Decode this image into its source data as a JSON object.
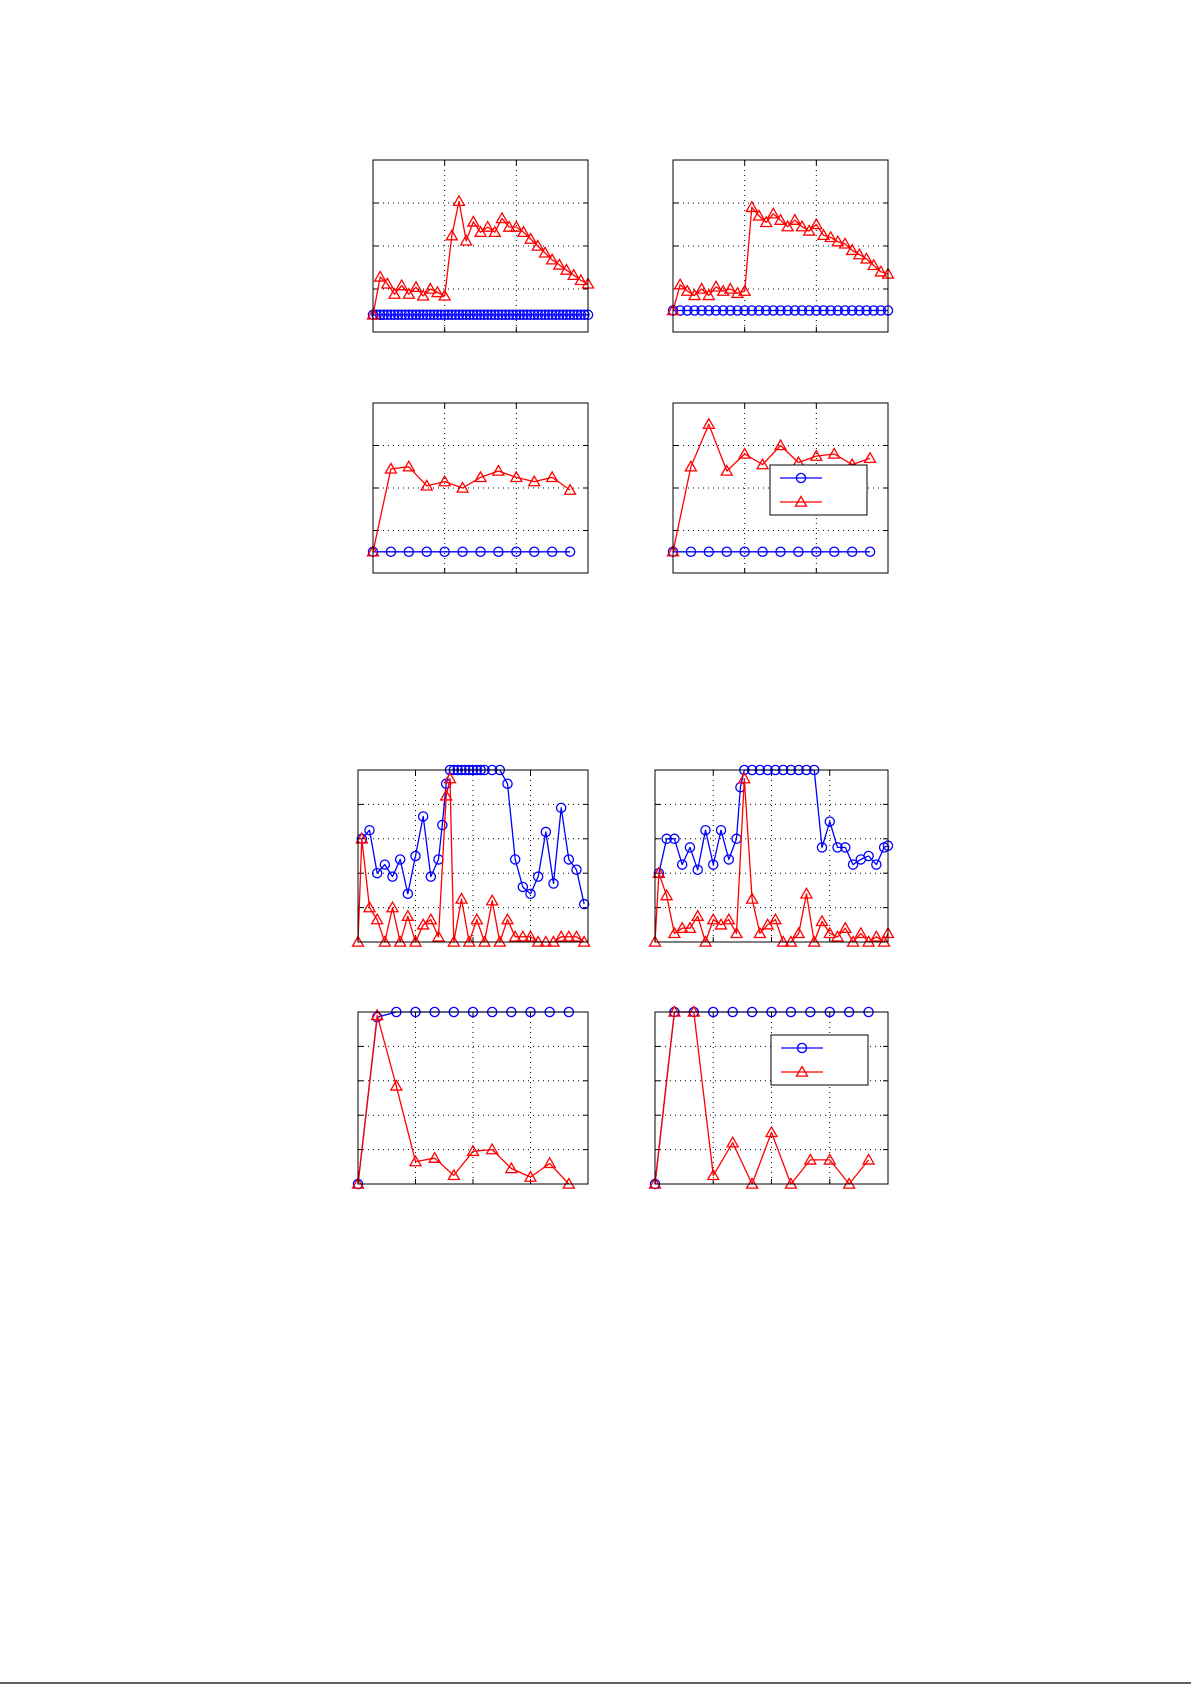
{
  "colors": {
    "series_circle": "#0000ff",
    "series_triangle": "#ff0000"
  },
  "chart_data": [
    {
      "id": "top-left",
      "type": "line",
      "grid": true,
      "xlim": [
        0,
        60
      ],
      "ylim": [
        -0.5,
        4.5
      ],
      "series": [
        {
          "marker": "circle",
          "color": "#0000ff",
          "x": [
            0,
            1,
            2,
            3,
            4,
            5,
            6,
            7,
            8,
            9,
            10,
            11,
            12,
            13,
            14,
            15,
            16,
            17,
            18,
            19,
            20,
            21,
            22,
            23,
            24,
            25,
            26,
            27,
            28,
            29,
            30,
            31,
            32,
            33,
            34,
            35,
            36,
            37,
            38,
            39,
            40,
            41,
            42,
            43,
            44,
            45,
            46,
            47,
            48,
            49,
            50,
            51,
            52,
            53,
            54,
            55,
            56,
            57,
            58,
            59,
            60
          ],
          "y": [
            0,
            0,
            0,
            0,
            0,
            0,
            0,
            0,
            0,
            0,
            0,
            0,
            0,
            0,
            0,
            0,
            0,
            0,
            0,
            0,
            0,
            0,
            0,
            0,
            0,
            0,
            0,
            0,
            0,
            0,
            0,
            0,
            0,
            0,
            0,
            0,
            0,
            0,
            0,
            0,
            0,
            0,
            0,
            0,
            0,
            0,
            0,
            0,
            0,
            0,
            0,
            0,
            0,
            0,
            0,
            0,
            0,
            0,
            0,
            0,
            0
          ]
        },
        {
          "marker": "triangle",
          "color": "#ff0000",
          "x": [
            0,
            2,
            4,
            6,
            8,
            10,
            12,
            14,
            16,
            18,
            20,
            22,
            24,
            26,
            28,
            30,
            32,
            34,
            36,
            38,
            40,
            42,
            44,
            46,
            48,
            50,
            52,
            54,
            56,
            58,
            60
          ],
          "y": [
            0,
            1.1,
            0.9,
            0.6,
            0.85,
            0.6,
            0.8,
            0.55,
            0.75,
            0.65,
            0.55,
            2.3,
            3.3,
            2.15,
            2.7,
            2.4,
            2.55,
            2.4,
            2.8,
            2.55,
            2.55,
            2.4,
            2.2,
            2.0,
            1.8,
            1.6,
            1.45,
            1.3,
            1.15,
            1.0,
            0.9
          ]
        }
      ]
    },
    {
      "id": "top-right",
      "type": "line",
      "grid": true,
      "xlim": [
        0,
        60
      ],
      "ylim": [
        -0.5,
        3.5
      ],
      "series": [
        {
          "marker": "circle",
          "color": "#0000ff",
          "x": [
            0,
            2,
            4,
            6,
            8,
            10,
            12,
            14,
            16,
            18,
            20,
            22,
            24,
            26,
            28,
            30,
            32,
            34,
            36,
            38,
            40,
            42,
            44,
            46,
            48,
            50,
            52,
            54,
            56,
            58,
            60
          ],
          "y": [
            0,
            0,
            0,
            0,
            0,
            0,
            0,
            0,
            0,
            0,
            0,
            0,
            0,
            0,
            0,
            0,
            0,
            0,
            0,
            0,
            0,
            0,
            0,
            0,
            0,
            0,
            0,
            0,
            0,
            0,
            0
          ]
        },
        {
          "marker": "triangle",
          "color": "#ff0000",
          "x": [
            0,
            2,
            4,
            6,
            8,
            10,
            12,
            14,
            16,
            18,
            20,
            22,
            24,
            26,
            28,
            30,
            32,
            34,
            36,
            38,
            40,
            42,
            44,
            46,
            48,
            50,
            52,
            54,
            56,
            58,
            60
          ],
          "y": [
            0,
            0.6,
            0.45,
            0.35,
            0.5,
            0.35,
            0.55,
            0.45,
            0.5,
            0.4,
            0.45,
            2.4,
            2.2,
            2.05,
            2.25,
            2.1,
            1.95,
            2.1,
            1.95,
            1.85,
            2.0,
            1.75,
            1.7,
            1.6,
            1.55,
            1.4,
            1.3,
            1.2,
            1.05,
            0.9,
            0.85
          ]
        }
      ]
    },
    {
      "id": "mid-left",
      "type": "line",
      "grid": true,
      "xlim": [
        0,
        60
      ],
      "ylim": [
        -0.5,
        3.5
      ],
      "series": [
        {
          "marker": "circle",
          "color": "#0000ff",
          "x": [
            0,
            5,
            10,
            15,
            20,
            25,
            30,
            35,
            40,
            45,
            50,
            55
          ],
          "y": [
            0,
            0,
            0,
            0,
            0,
            0,
            0,
            0,
            0,
            0,
            0,
            0
          ]
        },
        {
          "marker": "triangle",
          "color": "#ff0000",
          "x": [
            0,
            5,
            10,
            15,
            20,
            25,
            30,
            35,
            40,
            45,
            50,
            55
          ],
          "y": [
            0,
            1.95,
            2.0,
            1.55,
            1.65,
            1.5,
            1.75,
            1.9,
            1.75,
            1.65,
            1.75,
            1.45
          ]
        }
      ]
    },
    {
      "id": "mid-right",
      "type": "line",
      "grid": true,
      "xlim": [
        0,
        60
      ],
      "ylim": [
        -0.5,
        3.5
      ],
      "legend": "right",
      "series": [
        {
          "marker": "circle",
          "color": "#0000ff",
          "x": [
            0,
            5,
            10,
            15,
            20,
            25,
            30,
            35,
            40,
            45,
            50,
            55
          ],
          "y": [
            0,
            0,
            0,
            0,
            0,
            0,
            0,
            0,
            0,
            0,
            0,
            0
          ]
        },
        {
          "marker": "triangle",
          "color": "#ff0000",
          "x": [
            0,
            5,
            10,
            15,
            20,
            25,
            30,
            35,
            40,
            45,
            50,
            55
          ],
          "y": [
            0,
            2.0,
            3.0,
            1.9,
            2.3,
            2.05,
            2.5,
            2.1,
            2.25,
            2.3,
            2.05,
            2.2
          ]
        }
      ]
    },
    {
      "id": "lower-top-left",
      "type": "line",
      "grid": true,
      "xlim": [
        0,
        60
      ],
      "ylim": [
        0,
        1
      ],
      "series": [
        {
          "marker": "circle",
          "color": "#0000ff",
          "x": [
            1,
            3,
            5,
            7,
            9,
            11,
            13,
            15,
            17,
            19,
            21,
            22,
            23,
            24,
            25,
            26,
            27,
            28,
            29,
            30,
            31,
            32,
            33,
            35,
            37,
            39,
            41,
            43,
            45,
            47,
            49,
            51,
            53,
            55,
            57,
            59
          ],
          "y": [
            0.6,
            0.65,
            0.4,
            0.45,
            0.38,
            0.48,
            0.28,
            0.5,
            0.73,
            0.38,
            0.48,
            0.68,
            0.92,
            1,
            1,
            1,
            1,
            1,
            1,
            1,
            1,
            1,
            1,
            1,
            1,
            0.92,
            0.48,
            0.32,
            0.28,
            0.38,
            0.64,
            0.34,
            0.78,
            0.48,
            0.42,
            0.22
          ]
        },
        {
          "marker": "triangle",
          "color": "#ff0000",
          "x": [
            0,
            1,
            3,
            5,
            7,
            9,
            11,
            13,
            15,
            17,
            19,
            21,
            23,
            24,
            25,
            27,
            29,
            31,
            33,
            35,
            37,
            39,
            41,
            43,
            45,
            47,
            49,
            51,
            53,
            55,
            57,
            59
          ],
          "y": [
            0,
            0.6,
            0.2,
            0.13,
            0,
            0.2,
            0,
            0.15,
            0,
            0.1,
            0.13,
            0.03,
            0.85,
            0.95,
            0,
            0.25,
            0,
            0.13,
            0,
            0.24,
            0,
            0.13,
            0.03,
            0.03,
            0.03,
            0,
            0,
            0,
            0.03,
            0.03,
            0.03,
            0
          ]
        }
      ]
    },
    {
      "id": "lower-top-right",
      "type": "line",
      "grid": true,
      "xlim": [
        0,
        60
      ],
      "ylim": [
        0,
        1
      ],
      "series": [
        {
          "marker": "circle",
          "color": "#0000ff",
          "x": [
            1,
            3,
            5,
            7,
            9,
            11,
            13,
            15,
            17,
            19,
            21,
            22,
            23,
            25,
            27,
            29,
            31,
            33,
            35,
            37,
            39,
            41,
            43,
            45,
            47,
            49,
            51,
            53,
            55,
            57,
            59,
            60
          ],
          "y": [
            0.4,
            0.6,
            0.6,
            0.45,
            0.55,
            0.42,
            0.65,
            0.45,
            0.65,
            0.48,
            0.6,
            0.9,
            1,
            1,
            1,
            1,
            1,
            1,
            1,
            1,
            1,
            1,
            0.55,
            0.7,
            0.55,
            0.55,
            0.45,
            0.48,
            0.5,
            0.45,
            0.55,
            0.56
          ]
        },
        {
          "marker": "triangle",
          "color": "#ff0000",
          "x": [
            0,
            1,
            3,
            5,
            7,
            9,
            11,
            13,
            15,
            17,
            19,
            21,
            23,
            25,
            27,
            29,
            31,
            33,
            35,
            37,
            39,
            41,
            43,
            45,
            47,
            49,
            51,
            53,
            55,
            57,
            59,
            60
          ],
          "y": [
            0,
            0.4,
            0.27,
            0.05,
            0.08,
            0.08,
            0.15,
            0,
            0.13,
            0.1,
            0.13,
            0.05,
            0.95,
            0.25,
            0.05,
            0.1,
            0.13,
            0,
            0,
            0.05,
            0.28,
            0,
            0.12,
            0.05,
            0.03,
            0.08,
            0,
            0.05,
            0,
            0.03,
            0,
            0.05
          ]
        }
      ]
    },
    {
      "id": "lower-bottom-left",
      "type": "line",
      "grid": true,
      "xlim": [
        0,
        60
      ],
      "ylim": [
        0,
        1
      ],
      "series": [
        {
          "marker": "circle",
          "color": "#0000ff",
          "x": [
            0,
            5,
            10,
            15,
            20,
            25,
            30,
            35,
            40,
            45,
            50,
            55
          ],
          "y": [
            0,
            0.97,
            1,
            1,
            1,
            1,
            1,
            1,
            1,
            1,
            1,
            1
          ]
        },
        {
          "marker": "triangle",
          "color": "#ff0000",
          "x": [
            0,
            5,
            10,
            15,
            20,
            25,
            30,
            35,
            40,
            45,
            50,
            55
          ],
          "y": [
            0,
            0.98,
            0.57,
            0.13,
            0.15,
            0.05,
            0.19,
            0.2,
            0.09,
            0.04,
            0.12,
            0
          ]
        }
      ]
    },
    {
      "id": "lower-bottom-right",
      "type": "line",
      "grid": true,
      "xlim": [
        0,
        60
      ],
      "ylim": [
        0,
        1
      ],
      "legend": "top-right",
      "series": [
        {
          "marker": "circle",
          "color": "#0000ff",
          "x": [
            0,
            5,
            10,
            15,
            20,
            25,
            30,
            35,
            40,
            45,
            50,
            55
          ],
          "y": [
            0,
            1,
            1,
            1,
            1,
            1,
            1,
            1,
            1,
            1,
            1,
            1
          ]
        },
        {
          "marker": "triangle",
          "color": "#ff0000",
          "x": [
            0,
            5,
            10,
            15,
            20,
            25,
            30,
            35,
            40,
            45,
            50,
            55
          ],
          "y": [
            0,
            1,
            1,
            0.05,
            0.24,
            0,
            0.3,
            0,
            0.14,
            0.14,
            0,
            0.14
          ]
        }
      ]
    }
  ]
}
